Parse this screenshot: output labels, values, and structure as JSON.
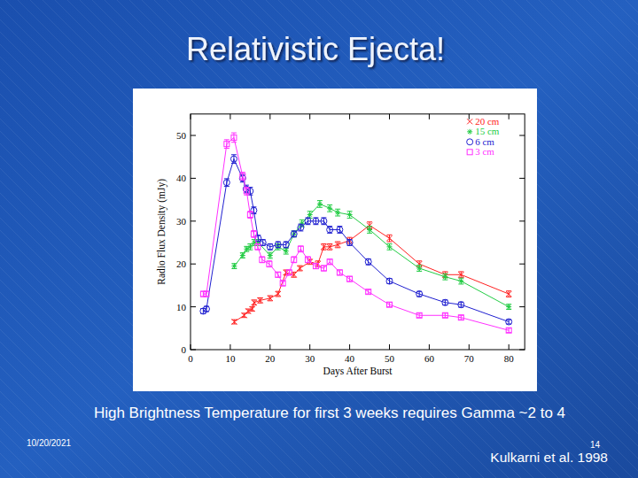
{
  "slide": {
    "title": "Relativistic Ejecta!",
    "caption": "High Brightness Temperature for first 3 weeks requires Gamma ~2 to 4",
    "citation": "Kulkarni et al. 1998",
    "date": "10/20/2021",
    "page": "14"
  },
  "chart_data": {
    "type": "line",
    "x_label": "Days After Burst",
    "y_label": "Radio Flux Density (mJy)",
    "xlim": [
      0,
      84
    ],
    "ylim": [
      0,
      55
    ],
    "xticks": [
      0,
      10,
      20,
      30,
      40,
      50,
      60,
      70,
      80
    ],
    "yticks": [
      0,
      10,
      20,
      30,
      40,
      50
    ],
    "grid": false,
    "legend": "upper right",
    "marker": "circle",
    "line_style": "solid",
    "series": [
      {
        "name": "20 cm",
        "color": "#ff2020",
        "marker": "x",
        "x": [
          11,
          13.5,
          14.5,
          15.5,
          16,
          17.5,
          20,
          22,
          24,
          26,
          27.5,
          30,
          32,
          33.5,
          35,
          37,
          40,
          45,
          50,
          57.5,
          64,
          68,
          80
        ],
        "values": [
          6.5,
          8,
          9,
          9.5,
          11,
          11.5,
          12,
          13,
          18,
          17.5,
          19,
          20.5,
          20,
          24,
          24,
          24.5,
          25.5,
          29,
          26,
          20,
          17.5,
          17.5,
          13
        ],
        "errors": [
          0.5,
          0.5,
          0.5,
          0.5,
          0.6,
          0.6,
          0.6,
          0.6,
          0.6,
          0.6,
          0.6,
          0.6,
          0.7,
          0.7,
          0.7,
          0.7,
          0.7,
          0.8,
          0.8,
          0.7,
          0.7,
          0.7,
          0.7
        ]
      },
      {
        "name": "15 cm",
        "color": "#22cc44",
        "marker": "star",
        "x": [
          11,
          13.1,
          14.1,
          15,
          16,
          17,
          20,
          22,
          24,
          26,
          28,
          30,
          32.5,
          35,
          37,
          40,
          45,
          50,
          57.5,
          64,
          68,
          80
        ],
        "values": [
          19.5,
          22,
          23.5,
          24,
          25,
          25,
          22,
          24,
          23,
          27,
          29.5,
          31.5,
          34,
          33,
          32,
          31.5,
          28,
          24,
          19,
          17,
          16,
          10
        ],
        "errors": [
          0.6,
          0.6,
          0.6,
          0.7,
          0.7,
          0.7,
          0.7,
          0.7,
          0.7,
          0.7,
          0.8,
          0.8,
          0.8,
          0.8,
          0.8,
          0.8,
          0.8,
          0.7,
          0.7,
          0.7,
          0.7,
          0.6
        ]
      },
      {
        "name": "6 cm",
        "color": "#2020d0",
        "marker": "circle",
        "x": [
          3.2,
          4.0,
          9.1,
          10.9,
          13.1,
          14.0,
          15.0,
          15.9,
          17.0,
          18.2,
          20.0,
          22.0,
          24.0,
          26.0,
          27.7,
          29.5,
          31.5,
          33.5,
          35.0,
          37.5,
          40.0,
          44.7,
          50.0,
          57.5,
          64.0,
          68.0,
          80.0
        ],
        "values": [
          9,
          9.5,
          39,
          44.5,
          40,
          37.5,
          37,
          32.5,
          26,
          25,
          24,
          24.5,
          24.5,
          27,
          28.5,
          30,
          30,
          30,
          28,
          28,
          25,
          20.5,
          16,
          13,
          11,
          10.5,
          6.5
        ],
        "errors": [
          0.6,
          0.6,
          0.9,
          1.0,
          0.9,
          0.9,
          0.9,
          0.8,
          0.7,
          0.7,
          0.7,
          0.7,
          0.7,
          0.7,
          0.8,
          0.8,
          0.8,
          0.8,
          0.8,
          0.8,
          0.7,
          0.7,
          0.6,
          0.6,
          0.6,
          0.6,
          0.5
        ]
      },
      {
        "name": "3 cm",
        "color": "#ff30ff",
        "marker": "square",
        "x": [
          3.2,
          4.0,
          9.1,
          10.9,
          13.1,
          14.1,
          15.0,
          15.9,
          16.9,
          18.0,
          19.8,
          22.0,
          23.2,
          24.8,
          26.0,
          27.7,
          29.5,
          31.5,
          33.5,
          35.0,
          37.5,
          40.0,
          44.7,
          50.0,
          57.5,
          64.0,
          68.0,
          80.0
        ],
        "values": [
          13,
          13,
          48,
          49.5,
          40.5,
          37,
          31.5,
          27,
          24,
          21,
          20,
          17.5,
          15.5,
          18,
          21,
          23.5,
          21,
          19.5,
          19,
          20.5,
          18,
          16.5,
          13.5,
          10.5,
          8,
          8,
          7.5,
          4.5
        ],
        "errors": [
          0.6,
          0.6,
          1.0,
          1.1,
          0.9,
          0.9,
          0.8,
          0.8,
          0.7,
          0.7,
          0.7,
          0.6,
          0.6,
          0.6,
          0.7,
          0.7,
          0.7,
          0.6,
          0.6,
          0.6,
          0.6,
          0.6,
          0.5,
          0.5,
          0.5,
          0.5,
          0.5,
          0.5
        ]
      }
    ]
  }
}
